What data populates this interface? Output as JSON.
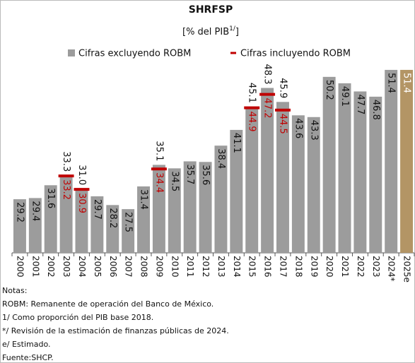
{
  "chart_data": {
    "type": "bar",
    "title": "SHRFSP",
    "subtitle": [
      {
        "text": "[% del PIB"
      },
      {
        "text": "1/",
        "sup": true
      },
      {
        "text": "]"
      }
    ],
    "categories": [
      "2000",
      "2001",
      "2002",
      "2003",
      "2004",
      "2005",
      "2006",
      "2007",
      "2008",
      "2009",
      "2010",
      "2011",
      "2012",
      "2013",
      "2014",
      "2015",
      "2016",
      "2017",
      "2018",
      "2019",
      "2020",
      "2021",
      "2022",
      "2023",
      "2024*",
      "2025e"
    ],
    "series": [
      {
        "name": "Cifras excluyendo ROBM",
        "color": "#9c9c9c",
        "colors": [
          "#9c9c9c",
          "#9c9c9c",
          "#9c9c9c",
          "#9c9c9c",
          "#9c9c9c",
          "#9c9c9c",
          "#9c9c9c",
          "#9c9c9c",
          "#9c9c9c",
          "#9c9c9c",
          "#9c9c9c",
          "#9c9c9c",
          "#9c9c9c",
          "#9c9c9c",
          "#9c9c9c",
          "#9c9c9c",
          "#9c9c9c",
          "#9c9c9c",
          "#9c9c9c",
          "#9c9c9c",
          "#9c9c9c",
          "#9c9c9c",
          "#9c9c9c",
          "#9c9c9c",
          "#9c9c9c",
          "#b39565"
        ],
        "values": [
          29.2,
          29.4,
          31.6,
          33.3,
          31.0,
          29.7,
          28.2,
          27.5,
          31.4,
          35.1,
          34.5,
          35.7,
          35.6,
          38.4,
          41.1,
          45.1,
          48.3,
          45.9,
          43.6,
          43.3,
          50.2,
          49.1,
          47.7,
          46.8,
          51.4,
          51.4
        ],
        "value_labels": [
          "29.2",
          "29.4",
          "31.6",
          "33.3",
          "31.0",
          "29.7",
          "28.2",
          "27.5",
          "31.4",
          "35.1",
          "34.5",
          "35.7",
          "35.6",
          "38.4",
          "41.1",
          "45.1",
          "48.3",
          "45.9",
          "43.6",
          "43.3",
          "50.2",
          "49.1",
          "47.7",
          "46.8",
          "51.4",
          "51.4"
        ]
      },
      {
        "name": "Cifras incluyendo ROBM",
        "color": "#c00000",
        "values": [
          null,
          null,
          null,
          33.2,
          30.9,
          null,
          null,
          null,
          null,
          34.4,
          null,
          null,
          null,
          null,
          null,
          44.9,
          47.2,
          44.5,
          null,
          null,
          null,
          null,
          null,
          null,
          null,
          null
        ],
        "value_labels": [
          null,
          null,
          null,
          "33.2",
          "30.9",
          null,
          null,
          null,
          null,
          "34.4",
          null,
          null,
          null,
          null,
          null,
          "44.9",
          "47.2",
          "44.5",
          null,
          null,
          null,
          null,
          null,
          null,
          null,
          null
        ]
      }
    ],
    "ylim": [
      20,
      52
    ],
    "notes": [
      "Notas:",
      "ROBM: Remanente de operación del Banco de México.",
      "1/ Como proporción del PIB base 2018.",
      "*/ Revisión de la estimación de finanzas públicas de 2024.",
      "e/ Estimado.",
      "Fuente:SHCP."
    ]
  }
}
